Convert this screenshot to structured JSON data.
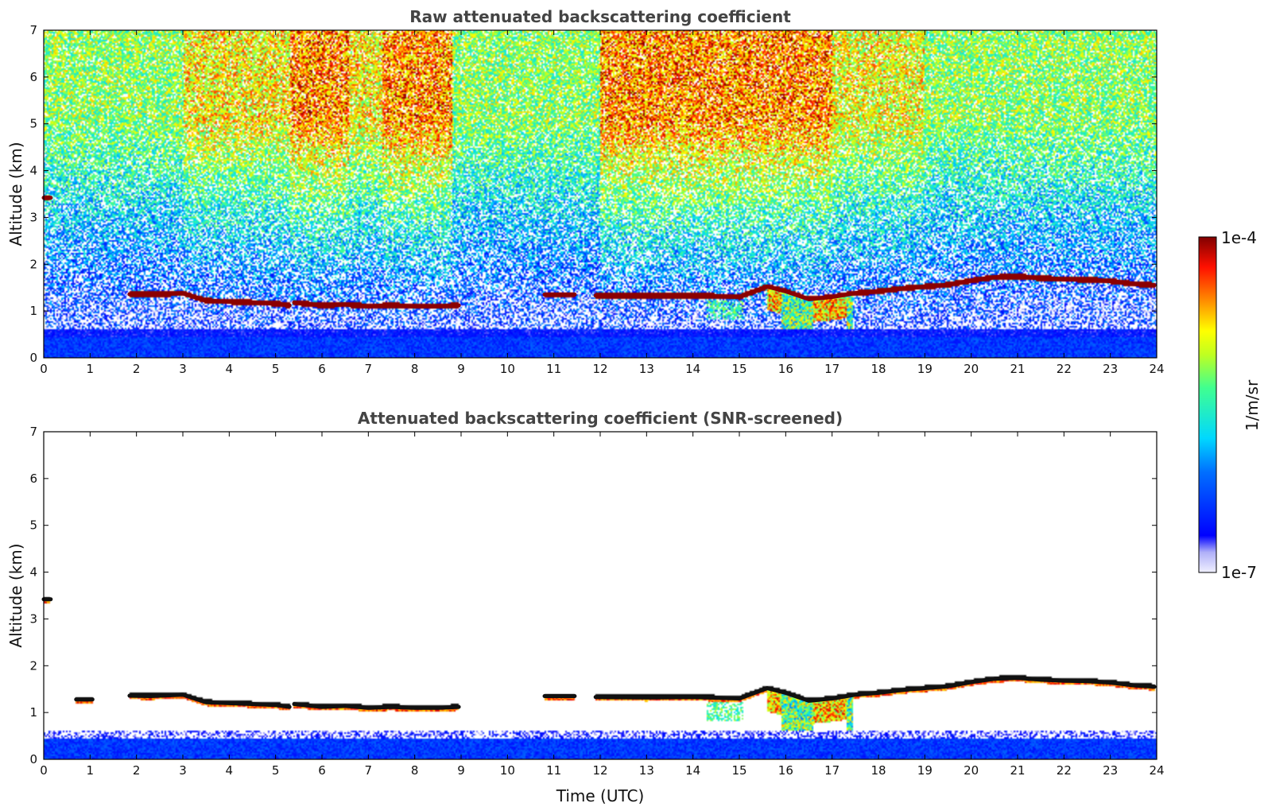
{
  "chart_data": [
    {
      "type": "heatmap",
      "title": "Raw attenuated backscattering coefficient",
      "xlabel": "",
      "ylabel": "Altitude (km)",
      "xlim": [
        0,
        24
      ],
      "ylim": [
        0,
        7
      ],
      "xticks": [
        "0",
        "1",
        "2",
        "3",
        "4",
        "5",
        "6",
        "7",
        "8",
        "9",
        "10",
        "11",
        "12",
        "13",
        "14",
        "15",
        "16",
        "17",
        "18",
        "19",
        "20",
        "21",
        "22",
        "23",
        "24"
      ],
      "yticks": [
        "0",
        "1",
        "2",
        "3",
        "4",
        "5",
        "6",
        "7"
      ],
      "screened": false,
      "cloud_base_km": [
        {
          "x": [
            0.0,
            0.15
          ],
          "y": [
            3.42,
            3.42
          ]
        },
        {
          "x": [
            1.85,
            2.3,
            3.0,
            3.5,
            4.0,
            4.5,
            5.0,
            5.3
          ],
          "y": [
            1.36,
            1.35,
            1.38,
            1.22,
            1.2,
            1.18,
            1.16,
            1.12
          ]
        },
        {
          "x": [
            5.4,
            6.0,
            6.5,
            7.0,
            7.5,
            8.0,
            8.5,
            8.95
          ],
          "y": [
            1.18,
            1.12,
            1.14,
            1.1,
            1.12,
            1.1,
            1.1,
            1.12
          ]
        },
        {
          "x": [
            10.8,
            11.45
          ],
          "y": [
            1.35,
            1.35
          ]
        },
        {
          "x": [
            11.9,
            13.0,
            14.0,
            15.0,
            15.6,
            16.0,
            16.5,
            17.0,
            17.5,
            18.0,
            18.5,
            19.0,
            19.5,
            20.0,
            20.5,
            21.0,
            21.5,
            22.0,
            22.5,
            23.0,
            23.5,
            23.95
          ],
          "y": [
            1.33,
            1.32,
            1.33,
            1.3,
            1.52,
            1.42,
            1.25,
            1.3,
            1.38,
            1.42,
            1.48,
            1.52,
            1.56,
            1.65,
            1.72,
            1.74,
            1.7,
            1.68,
            1.67,
            1.64,
            1.58,
            1.55
          ]
        }
      ],
      "colorbar": {
        "min_label": "1e-7",
        "max_label": "1e-4",
        "label": "1/m/sr",
        "scale": "log",
        "colormap": "jet"
      }
    },
    {
      "type": "heatmap",
      "title": "Attenuated backscattering coefficient (SNR-screened)",
      "xlabel": "Time (UTC)",
      "ylabel": "Altitude (km)",
      "xlim": [
        0,
        24
      ],
      "ylim": [
        0,
        7
      ],
      "xticks": [
        "0",
        "1",
        "2",
        "3",
        "4",
        "5",
        "6",
        "7",
        "8",
        "9",
        "10",
        "11",
        "12",
        "13",
        "14",
        "15",
        "16",
        "17",
        "18",
        "19",
        "20",
        "21",
        "22",
        "23",
        "24"
      ],
      "yticks": [
        "0",
        "1",
        "2",
        "3",
        "4",
        "5",
        "6",
        "7"
      ],
      "screened": true,
      "cloud_base_km": [
        {
          "x": [
            0.0,
            0.15
          ],
          "y": [
            3.42,
            3.42
          ]
        },
        {
          "x": [
            0.7,
            1.05
          ],
          "y": [
            1.28,
            1.28
          ]
        },
        {
          "x": [
            1.85,
            2.3,
            3.0,
            3.5,
            4.0,
            4.5,
            5.0,
            5.3
          ],
          "y": [
            1.36,
            1.35,
            1.38,
            1.22,
            1.2,
            1.18,
            1.16,
            1.12
          ]
        },
        {
          "x": [
            5.4,
            6.0,
            6.5,
            7.0,
            7.5,
            8.0,
            8.5,
            8.95
          ],
          "y": [
            1.18,
            1.12,
            1.14,
            1.1,
            1.12,
            1.1,
            1.1,
            1.12
          ]
        },
        {
          "x": [
            10.8,
            11.45
          ],
          "y": [
            1.35,
            1.35
          ]
        },
        {
          "x": [
            11.9,
            13.0,
            14.0,
            15.0,
            15.6,
            16.0,
            16.5,
            17.0,
            17.5,
            18.0,
            18.5,
            19.0,
            19.5,
            20.0,
            20.5,
            21.0,
            21.5,
            22.0,
            22.5,
            23.0,
            23.5,
            23.95
          ],
          "y": [
            1.33,
            1.32,
            1.33,
            1.3,
            1.52,
            1.42,
            1.25,
            1.3,
            1.38,
            1.42,
            1.48,
            1.52,
            1.56,
            1.65,
            1.72,
            1.74,
            1.7,
            1.68,
            1.67,
            1.64,
            1.58,
            1.55
          ]
        }
      ],
      "colorbar": {
        "min_label": "1e-7",
        "max_label": "1e-4",
        "label": "1/m/sr",
        "scale": "log",
        "colormap": "jet"
      }
    }
  ]
}
